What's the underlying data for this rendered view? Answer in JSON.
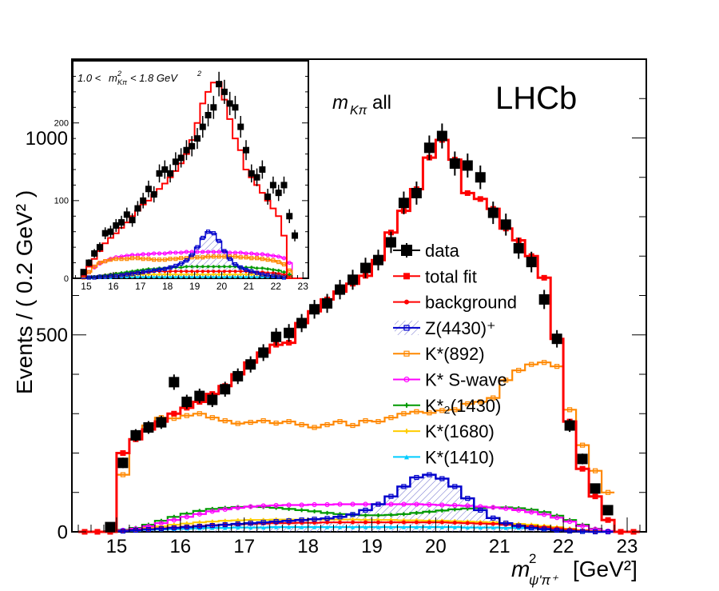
{
  "chart_data": {
    "type": "histogram",
    "experiment_label": "LHCb",
    "selection_label": "all",
    "selection_var": "m_Kπ",
    "xlabel": "m²_ψ'π⁺ [GeV²]",
    "xlabel_parts": {
      "symbol": "m",
      "sup": "2",
      "sub": "ψ'π⁺",
      "units": "[GeV²]"
    },
    "ylabel": "Events / ( 0.2 GeV² )",
    "xlim": [
      14.3,
      23.3
    ],
    "ylim": [
      0,
      1200
    ],
    "xticks": [
      "15",
      "16",
      "17",
      "18",
      "19",
      "20",
      "21",
      "22",
      "23"
    ],
    "yticks": [
      "0",
      "500",
      "1000"
    ],
    "legend": [
      "data",
      "total fit",
      "background",
      "Z(4430)⁺",
      "K*(892)",
      "K* S-wave",
      "K*₂(1430)",
      "K*(1680)",
      "K*(1410)"
    ],
    "legend_position": "center-right",
    "bin_width": 0.2,
    "bin_centers": [
      14.5,
      14.7,
      14.9,
      15.1,
      15.3,
      15.5,
      15.7,
      15.9,
      16.1,
      16.3,
      16.5,
      16.7,
      16.9,
      17.1,
      17.3,
      17.5,
      17.7,
      17.9,
      18.1,
      18.3,
      18.5,
      18.7,
      18.9,
      19.1,
      19.3,
      19.5,
      19.7,
      19.9,
      20.1,
      20.3,
      20.5,
      20.7,
      20.9,
      21.1,
      21.3,
      21.5,
      21.7,
      21.9,
      22.1,
      22.3,
      22.5,
      22.7,
      22.9,
      23.1
    ],
    "series": [
      {
        "name": "data",
        "color": "#000000",
        "values": [
          null,
          null,
          12,
          175,
          245,
          265,
          278,
          380,
          330,
          345,
          335,
          362,
          395,
          425,
          455,
          495,
          505,
          530,
          565,
          580,
          615,
          640,
          670,
          690,
          735,
          835,
          860,
          975,
          1005,
          935,
          930,
          900,
          810,
          780,
          720,
          685,
          590,
          490,
          270,
          185,
          110,
          55,
          null,
          null
        ]
      },
      {
        "name": "total fit",
        "color": "#ff0000",
        "values": [
          0,
          0,
          0,
          200,
          235,
          260,
          280,
          300,
          315,
          330,
          350,
          370,
          400,
          430,
          455,
          475,
          480,
          530,
          560,
          590,
          610,
          630,
          650,
          690,
          760,
          815,
          870,
          950,
          995,
          945,
          860,
          845,
          820,
          770,
          740,
          700,
          645,
          490,
          280,
          160,
          90,
          30,
          0,
          0
        ]
      },
      {
        "name": "background",
        "color": "#ff0000",
        "values": [
          null,
          null,
          1,
          3,
          5,
          7,
          9,
          11,
          13,
          15,
          17,
          18,
          19,
          20,
          21,
          22,
          22,
          23,
          23,
          24,
          24,
          24,
          24,
          24,
          24,
          24,
          24,
          24,
          24,
          23,
          22,
          21,
          20,
          18,
          16,
          14,
          12,
          9,
          6,
          3,
          1,
          null,
          null,
          null
        ]
      },
      {
        "name": "Z(4430)⁺",
        "color": "#0000cc",
        "values": [
          0,
          0,
          0,
          2,
          4,
          6,
          8,
          10,
          12,
          14,
          16,
          18,
          20,
          22,
          24,
          26,
          28,
          30,
          32,
          34,
          38,
          44,
          55,
          70,
          90,
          115,
          138,
          145,
          135,
          115,
          85,
          55,
          35,
          22,
          15,
          10,
          7,
          4,
          2,
          1,
          0,
          0,
          0,
          0
        ]
      },
      {
        "name": "K*(892)",
        "color": "#ff8800",
        "values": [
          null,
          null,
          null,
          145,
          235,
          270,
          290,
          288,
          295,
          300,
          290,
          282,
          275,
          278,
          282,
          276,
          280,
          272,
          265,
          272,
          280,
          270,
          282,
          280,
          290,
          300,
          305,
          302,
          308,
          310,
          325,
          330,
          340,
          385,
          410,
          425,
          430,
          420,
          310,
          220,
          155,
          100,
          null,
          null
        ]
      },
      {
        "name": "K* S-wave",
        "color": "#ff00ff",
        "values": [
          null,
          null,
          1,
          4,
          8,
          14,
          22,
          30,
          38,
          45,
          52,
          57,
          61,
          64,
          66,
          67,
          68,
          68,
          69,
          69,
          70,
          70,
          70,
          70,
          70,
          70,
          70,
          69,
          68,
          67,
          66,
          64,
          62,
          59,
          55,
          50,
          44,
          36,
          26,
          15,
          7,
          2,
          null,
          null
        ]
      },
      {
        "name": "K*₂(1430)",
        "color": "#009900",
        "values": [
          null,
          null,
          1,
          5,
          10,
          18,
          28,
          38,
          46,
          53,
          58,
          61,
          63,
          64,
          63,
          61,
          58,
          55,
          52,
          48,
          45,
          43,
          42,
          42,
          43,
          45,
          48,
          51,
          54,
          57,
          59,
          61,
          62,
          62,
          60,
          56,
          50,
          41,
          30,
          18,
          8,
          2,
          null,
          null
        ]
      },
      {
        "name": "K*(1680)",
        "color": "#ffcc00",
        "values": [
          null,
          null,
          1,
          3,
          6,
          10,
          14,
          18,
          21,
          24,
          26,
          28,
          29,
          30,
          30,
          31,
          31,
          31,
          31,
          31,
          31,
          31,
          30,
          30,
          30,
          29,
          29,
          28,
          28,
          27,
          26,
          25,
          24,
          22,
          20,
          18,
          15,
          12,
          8,
          4,
          2,
          null,
          null,
          null
        ]
      },
      {
        "name": "K*(1410)",
        "color": "#00ccff",
        "values": [
          null,
          null,
          0,
          2,
          3,
          5,
          6,
          7,
          8,
          9,
          10,
          10,
          11,
          11,
          11,
          12,
          12,
          12,
          12,
          12,
          12,
          12,
          12,
          12,
          12,
          12,
          12,
          12,
          12,
          12,
          11,
          11,
          11,
          10,
          10,
          9,
          8,
          6,
          4,
          2,
          1,
          null,
          null,
          null
        ]
      }
    ],
    "inset": {
      "label": "1.0 < m²_Kπ < 1.8 GeV²",
      "label_parts": {
        "lo": "1.0 <",
        "symbol": "m",
        "sup": "2",
        "sub": "Kπ",
        "hi": "< 1.8 GeV",
        "hi_sup": "2"
      },
      "xlim": [
        14.5,
        23.2
      ],
      "ylim": [
        0,
        280
      ],
      "xticks": [
        "15",
        "16",
        "17",
        "18",
        "19",
        "20",
        "21",
        "22",
        "23"
      ],
      "yticks": [
        "0",
        "100",
        "200"
      ],
      "bin_centers": [
        14.9,
        15.1,
        15.3,
        15.5,
        15.7,
        15.9,
        16.1,
        16.3,
        16.5,
        16.7,
        16.9,
        17.1,
        17.3,
        17.5,
        17.7,
        17.9,
        18.1,
        18.3,
        18.5,
        18.7,
        18.9,
        19.1,
        19.3,
        19.5,
        19.7,
        19.9,
        20.1,
        20.3,
        20.5,
        20.7,
        20.9,
        21.1,
        21.3,
        21.5,
        21.7,
        21.9,
        22.1,
        22.3,
        22.5,
        22.7,
        22.9
      ],
      "series": [
        {
          "name": "data",
          "values": [
            8,
            20,
            32,
            40,
            58,
            60,
            68,
            72,
            82,
            75,
            90,
            100,
            115,
            108,
            135,
            140,
            135,
            150,
            155,
            165,
            170,
            180,
            195,
            210,
            220,
            250,
            240,
            225,
            220,
            195,
            165,
            135,
            130,
            140,
            105,
            120,
            110,
            120,
            80,
            55,
            0
          ]
        },
        {
          "name": "total fit",
          "values": [
            3,
            15,
            25,
            35,
            45,
            52,
            58,
            65,
            72,
            80,
            87,
            95,
            100,
            108,
            115,
            122,
            130,
            138,
            148,
            160,
            178,
            200,
            225,
            240,
            252,
            252,
            230,
            205,
            180,
            165,
            140,
            130,
            120,
            110,
            100,
            90,
            80,
            55,
            0,
            0,
            0
          ]
        },
        {
          "name": "Z(4430)⁺",
          "values": [
            0,
            1,
            1,
            2,
            2,
            3,
            3,
            4,
            5,
            6,
            7,
            8,
            9,
            10,
            11,
            12,
            14,
            16,
            19,
            23,
            30,
            40,
            52,
            60,
            58,
            48,
            35,
            25,
            18,
            14,
            11,
            9,
            7,
            5,
            4,
            3,
            2,
            1,
            0,
            0,
            0
          ]
        },
        {
          "name": "K*(892)",
          "values": [
            1,
            8,
            15,
            20,
            22,
            24,
            25,
            25,
            25,
            26,
            26,
            25,
            25,
            24,
            24,
            24,
            25,
            25,
            26,
            26,
            27,
            27,
            27,
            28,
            28,
            28,
            28,
            28,
            28,
            27,
            27,
            26,
            26,
            25,
            24,
            23,
            21,
            18,
            10,
            0,
            0
          ]
        },
        {
          "name": "K* S-wave",
          "values": [
            2,
            8,
            14,
            19,
            22,
            25,
            27,
            28,
            29,
            30,
            30,
            31,
            31,
            32,
            32,
            32,
            33,
            33,
            33,
            34,
            34,
            34,
            34,
            34,
            34,
            34,
            34,
            33,
            33,
            33,
            32,
            32,
            31,
            31,
            30,
            29,
            28,
            26,
            20,
            0,
            0
          ]
        },
        {
          "name": "K*₂(1430)",
          "values": [
            0,
            1,
            2,
            3,
            4,
            5,
            6,
            7,
            8,
            9,
            10,
            11,
            12,
            12,
            13,
            13,
            14,
            14,
            14,
            15,
            15,
            15,
            15,
            15,
            15,
            15,
            15,
            15,
            15,
            14,
            14,
            14,
            13,
            13,
            12,
            11,
            10,
            8,
            5,
            0,
            0
          ]
        },
        {
          "name": "background",
          "values": [
            0,
            1,
            2,
            3,
            4,
            5,
            6,
            6,
            7,
            7,
            8,
            8,
            8,
            9,
            9,
            9,
            9,
            9,
            9,
            9,
            9,
            9,
            9,
            9,
            9,
            9,
            9,
            9,
            9,
            9,
            9,
            8,
            8,
            8,
            7,
            7,
            6,
            5,
            3,
            0,
            0
          ]
        },
        {
          "name": "K*(1680)",
          "values": [
            0,
            1,
            1,
            2,
            2,
            3,
            3,
            4,
            4,
            4,
            5,
            5,
            5,
            5,
            5,
            5,
            5,
            5,
            5,
            5,
            5,
            5,
            5,
            5,
            5,
            5,
            5,
            5,
            5,
            5,
            5,
            5,
            5,
            4,
            4,
            4,
            3,
            3,
            2,
            0,
            0
          ]
        },
        {
          "name": "K*(1410)",
          "values": [
            0,
            0,
            1,
            1,
            1,
            1,
            2,
            2,
            2,
            2,
            2,
            2,
            2,
            2,
            2,
            2,
            2,
            2,
            2,
            2,
            2,
            2,
            2,
            2,
            2,
            2,
            2,
            2,
            2,
            2,
            2,
            2,
            2,
            2,
            2,
            2,
            2,
            1,
            1,
            0,
            0
          ]
        }
      ]
    }
  }
}
